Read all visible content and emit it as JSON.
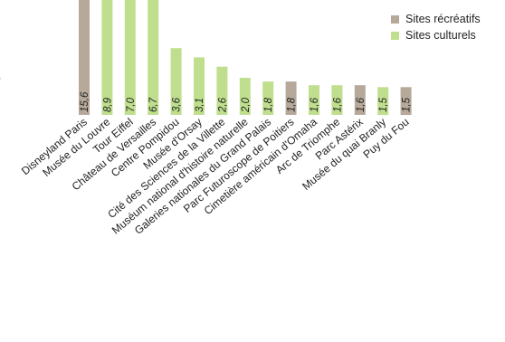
{
  "chart_data": {
    "type": "bar",
    "title": "",
    "xlabel": "",
    "ylabel": "",
    "ylim": [
      0,
      6.5
    ],
    "categories": [
      "Disneyland Paris",
      "Musée du Louvre",
      "Tour Eiffel",
      "Château de Versailles",
      "Centre Pompidou",
      "Musée d'Orsay",
      "Cité des Sciences de la Villette",
      "Muséum national d'histoire naturelle",
      "Galeries nationales du Grand Palais",
      "Parc Futuroscope de Poitiers",
      "Cimetière américain d'Omaha",
      "Arc de Triomphe",
      "Parc Astérix",
      "Musée du quai Branly",
      "Puy du Fou"
    ],
    "value_labels": [
      "15,6",
      "8,9",
      "7,0",
      "6,7",
      "3,6",
      "3,1",
      "2,6",
      "2,0",
      "1,8",
      "1,8",
      "1,6",
      "1,6",
      "1,6",
      "1,5",
      "1,5"
    ],
    "values": [
      15.6,
      8.9,
      7.0,
      6.7,
      3.6,
      3.1,
      2.6,
      2.0,
      1.8,
      1.8,
      1.6,
      1.6,
      1.6,
      1.5,
      1.5
    ],
    "series_type": [
      "recreatif",
      "culturel",
      "culturel",
      "culturel",
      "culturel",
      "culturel",
      "culturel",
      "culturel",
      "culturel",
      "recreatif",
      "culturel",
      "culturel",
      "recreatif",
      "culturel",
      "recreatif"
    ],
    "legend": [
      {
        "key": "recreatif",
        "name": "Sites récréatifs",
        "color": "#b6a99a"
      },
      {
        "key": "culturel",
        "name": "Sites culturels",
        "color": "#bfdf8e"
      }
    ],
    "legend_position": "top-right",
    "partial_axis_tick": "0",
    "grid": false
  }
}
